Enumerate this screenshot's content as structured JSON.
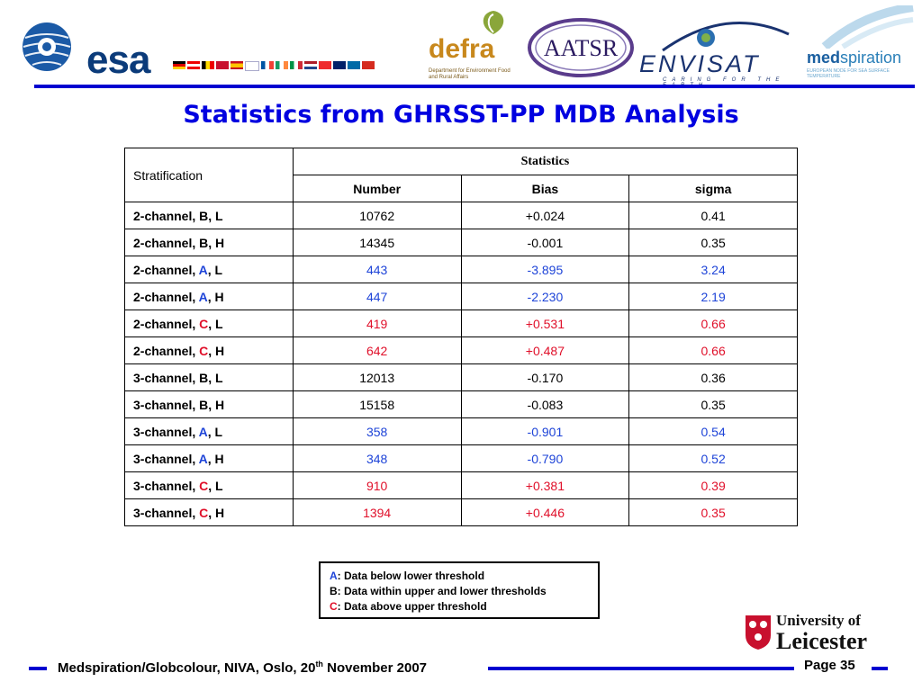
{
  "header": {
    "logos": {
      "esa": "esa",
      "defra": "defra",
      "defra_sub": "Department for Environment Food and Rural Affairs",
      "aatsr": "AATSR",
      "envisat": "ENVISAT",
      "envisat_sub": "CARING FOR THE EARTH",
      "medspiration_bold": "med",
      "medspiration_rest": "spiration",
      "medspiration_sub": "EUROPEAN NODE FOR SEA SURFACE TEMPERATURE"
    },
    "accent_color": "#0000d0"
  },
  "title": "Statistics from GHRSST-PP MDB Analysis",
  "table": {
    "stratification_header": "Stratification",
    "statistics_header": "Statistics",
    "columns": [
      "Number",
      "Bias",
      "sigma"
    ],
    "rows": [
      {
        "prefix": "2-channel, ",
        "key": "B",
        "suffix": ", L",
        "number": "10762",
        "bias": "+0.024",
        "sigma": "0.41",
        "tone": "black"
      },
      {
        "prefix": "2-channel, ",
        "key": "B",
        "suffix": ", H",
        "number": "14345",
        "bias": "-0.001",
        "sigma": "0.35",
        "tone": "black"
      },
      {
        "prefix": "2-channel, ",
        "key": "A",
        "suffix": ", L",
        "number": "443",
        "bias": "-3.895",
        "sigma": "3.24",
        "tone": "blue"
      },
      {
        "prefix": "2-channel, ",
        "key": "A",
        "suffix": ", H",
        "number": "447",
        "bias": "-2.230",
        "sigma": "2.19",
        "tone": "blue"
      },
      {
        "prefix": "2-channel, ",
        "key": "C",
        "suffix": ", L",
        "number": "419",
        "bias": "+0.531",
        "sigma": "0.66",
        "tone": "red"
      },
      {
        "prefix": "2-channel, ",
        "key": "C",
        "suffix": ", H",
        "number": "642",
        "bias": "+0.487",
        "sigma": "0.66",
        "tone": "red"
      },
      {
        "prefix": "3-channel, ",
        "key": "B",
        "suffix": ", L",
        "number": "12013",
        "bias": "-0.170",
        "sigma": "0.36",
        "tone": "black"
      },
      {
        "prefix": "3-channel, ",
        "key": "B",
        "suffix": ", H",
        "number": "15158",
        "bias": "-0.083",
        "sigma": "0.35",
        "tone": "black"
      },
      {
        "prefix": "3-channel, ",
        "key": "A",
        "suffix": ", L",
        "number": "358",
        "bias": "-0.901",
        "sigma": "0.54",
        "tone": "blue"
      },
      {
        "prefix": "3-channel, ",
        "key": "A",
        "suffix": ", H",
        "number": "348",
        "bias": "-0.790",
        "sigma": "0.52",
        "tone": "blue"
      },
      {
        "prefix": "3-channel, ",
        "key": "C",
        "suffix": ", L",
        "number": "910",
        "bias": "+0.381",
        "sigma": "0.39",
        "tone": "red"
      },
      {
        "prefix": "3-channel, ",
        "key": "C",
        "suffix": ", H",
        "number": "1394",
        "bias": "+0.446",
        "sigma": "0.35",
        "tone": "red"
      }
    ]
  },
  "legend": {
    "items": [
      {
        "key": "A",
        "text": ":  Data below lower threshold",
        "color": "#1e44d8"
      },
      {
        "key": "B",
        "text": ":  Data within upper and lower thresholds",
        "color": "#000000"
      },
      {
        "key": "C",
        "text": ":  Data above upper threshold",
        "color": "#e0102a"
      }
    ]
  },
  "university": {
    "line1": "University of",
    "line2": "Leicester"
  },
  "footer": {
    "text_before": "Medspiration/Globcolour, NIVA, Oslo, 20",
    "text_sup": "th",
    "text_after": " November 2007",
    "page": "Page 35"
  }
}
